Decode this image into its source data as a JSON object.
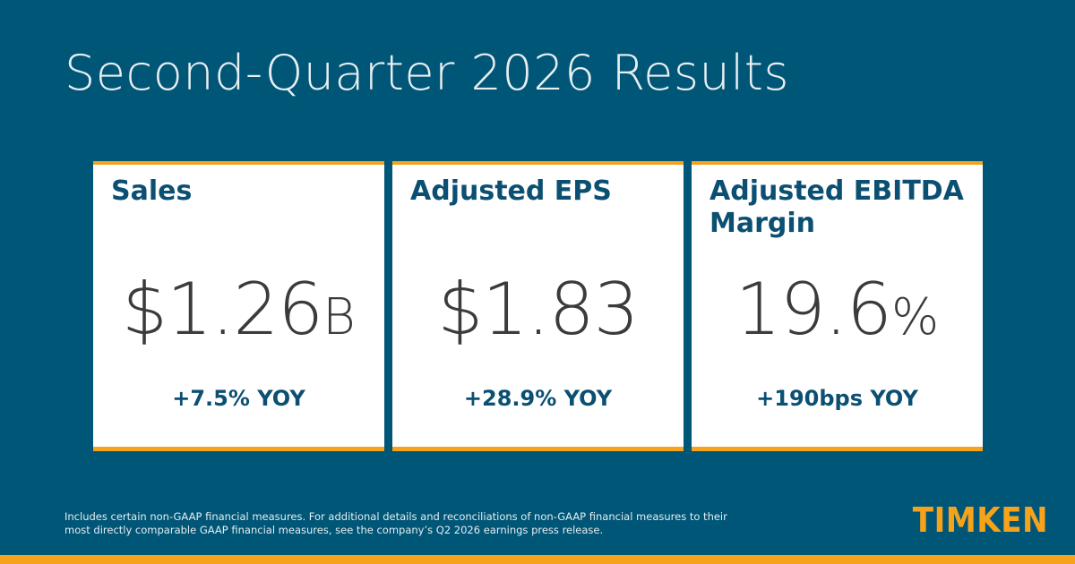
{
  "title": "Second-Quarter 2026 Results",
  "cards": [
    {
      "label": "Sales",
      "value": "$1.26",
      "unit": "B",
      "change": "+7.5% YOY"
    },
    {
      "label": "Adjusted EPS",
      "value": "$1.83",
      "unit": "",
      "change": "+28.9% YOY"
    },
    {
      "label": "Adjusted EBITDA Margin",
      "value": "19.6",
      "unit": "%",
      "change": "+190bps YOY"
    }
  ],
  "disclaimer": "Includes certain non-GAAP financial measures. For additional details and reconciliations of non-GAAP financial measures to their most directly comparable GAAP financial measures, see the company’s Q2 2026 earnings press release.",
  "logo": "TIMKEN",
  "colors": {
    "background": "#005677",
    "accent": "#f7a21b",
    "label": "#0b4f72",
    "value": "#3b3b3b"
  }
}
